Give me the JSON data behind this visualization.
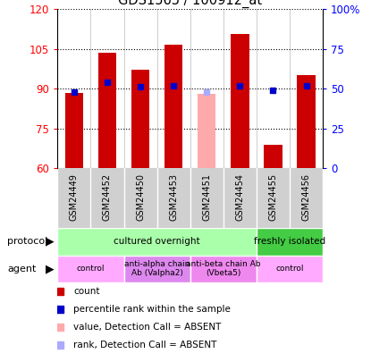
{
  "title": "GDS1565 / 100912_at",
  "samples": [
    "GSM24449",
    "GSM24452",
    "GSM24450",
    "GSM24453",
    "GSM24451",
    "GSM24454",
    "GSM24455",
    "GSM24456"
  ],
  "count_values": [
    88.5,
    103.5,
    97.0,
    106.5,
    88.0,
    110.5,
    69.0,
    95.0
  ],
  "percentile_values": [
    48.0,
    54.0,
    51.0,
    52.0,
    48.0,
    52.0,
    49.0,
    52.0
  ],
  "absent_mask": [
    false,
    false,
    false,
    false,
    true,
    false,
    false,
    false
  ],
  "ylim_left": [
    60,
    120
  ],
  "ylim_right": [
    0,
    100
  ],
  "yticks_left": [
    60,
    75,
    90,
    105,
    120
  ],
  "yticks_right": [
    0,
    25,
    50,
    75,
    100
  ],
  "bar_color_present": "#cc0000",
  "bar_color_absent": "#ffaaaa",
  "rank_color_present": "#0000cc",
  "rank_color_absent": "#aaaaff",
  "bar_width": 0.55,
  "protocol_labels": [
    {
      "text": "cultured overnight",
      "start": 0,
      "end": 6,
      "color": "#aaffaa"
    },
    {
      "text": "freshly isolated",
      "start": 6,
      "end": 8,
      "color": "#44cc44"
    }
  ],
  "agent_labels": [
    {
      "text": "control",
      "start": 0,
      "end": 2,
      "color": "#ffaaff"
    },
    {
      "text": "anti-alpha chain\nAb (Valpha2)",
      "start": 2,
      "end": 4,
      "color": "#dd88ee"
    },
    {
      "text": "anti-beta chain Ab\n(Vbeta5)",
      "start": 4,
      "end": 6,
      "color": "#ee88ee"
    },
    {
      "text": "control",
      "start": 6,
      "end": 8,
      "color": "#ffaaff"
    }
  ],
  "bg_color": "#d0d0d0",
  "plot_bg": "#ffffff",
  "legend_items": [
    {
      "color": "#cc0000",
      "label": "count"
    },
    {
      "color": "#0000cc",
      "label": "percentile rank within the sample"
    },
    {
      "color": "#ffaaaa",
      "label": "value, Detection Call = ABSENT"
    },
    {
      "color": "#aaaaff",
      "label": "rank, Detection Call = ABSENT"
    }
  ]
}
